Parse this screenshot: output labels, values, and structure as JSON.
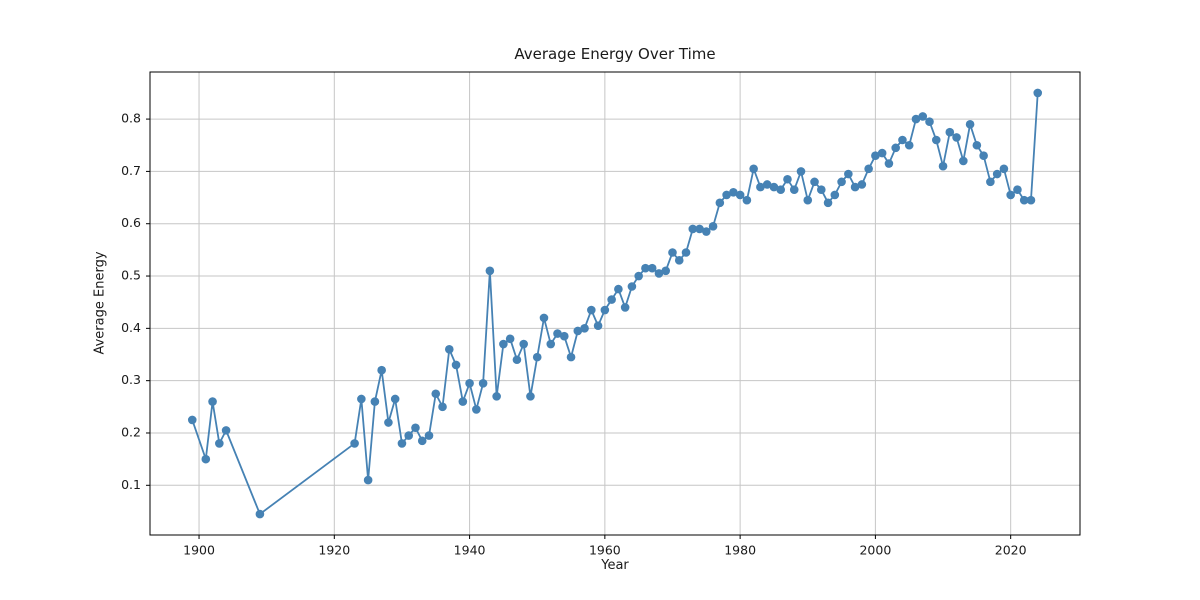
{
  "figure": {
    "title": "Average Energy Over Time",
    "background": "#ffffff"
  },
  "colors": {
    "line": "#4682b4",
    "grid": "#c6c6c6",
    "spine": "#000000",
    "text": "#1a1a1a"
  },
  "chart_data": {
    "type": "line",
    "title": "Average Energy Over Time",
    "xlabel": "Year",
    "ylabel": "Average Energy",
    "marker": "circle",
    "grid": true,
    "legend": "none",
    "xlim": [
      1892.75,
      2030.25
    ],
    "ylim": [
      0.005,
      0.89
    ],
    "x_ticks": [
      1900,
      1920,
      1940,
      1960,
      1980,
      2000,
      2020
    ],
    "y_ticks": [
      0.1,
      0.2,
      0.3,
      0.4,
      0.5,
      0.6,
      0.7,
      0.8
    ],
    "x": [
      1899,
      1901,
      1902,
      1903,
      1904,
      1909,
      1923,
      1924,
      1925,
      1926,
      1927,
      1928,
      1929,
      1930,
      1931,
      1932,
      1933,
      1934,
      1935,
      1936,
      1937,
      1938,
      1939,
      1940,
      1941,
      1942,
      1943,
      1944,
      1945,
      1946,
      1947,
      1948,
      1949,
      1950,
      1951,
      1952,
      1953,
      1954,
      1955,
      1956,
      1957,
      1958,
      1959,
      1960,
      1961,
      1962,
      1963,
      1964,
      1965,
      1966,
      1967,
      1968,
      1969,
      1970,
      1971,
      1972,
      1973,
      1974,
      1975,
      1976,
      1977,
      1978,
      1979,
      1980,
      1981,
      1982,
      1983,
      1984,
      1985,
      1986,
      1987,
      1988,
      1989,
      1990,
      1991,
      1992,
      1993,
      1994,
      1995,
      1996,
      1997,
      1998,
      1999,
      2000,
      2001,
      2002,
      2003,
      2004,
      2005,
      2006,
      2007,
      2008,
      2009,
      2010,
      2011,
      2012,
      2013,
      2014,
      2015,
      2016,
      2017,
      2018,
      2019,
      2020,
      2021,
      2022,
      2023,
      2024
    ],
    "y": [
      0.225,
      0.15,
      0.26,
      0.18,
      0.205,
      0.045,
      0.18,
      0.265,
      0.11,
      0.26,
      0.32,
      0.22,
      0.265,
      0.18,
      0.195,
      0.21,
      0.185,
      0.195,
      0.275,
      0.25,
      0.36,
      0.33,
      0.26,
      0.295,
      0.245,
      0.295,
      0.51,
      0.27,
      0.37,
      0.38,
      0.34,
      0.37,
      0.27,
      0.345,
      0.42,
      0.37,
      0.39,
      0.385,
      0.345,
      0.395,
      0.4,
      0.435,
      0.405,
      0.435,
      0.455,
      0.475,
      0.44,
      0.48,
      0.5,
      0.515,
      0.515,
      0.505,
      0.51,
      0.545,
      0.53,
      0.545,
      0.59,
      0.59,
      0.585,
      0.595,
      0.64,
      0.655,
      0.66,
      0.655,
      0.645,
      0.705,
      0.67,
      0.675,
      0.67,
      0.665,
      0.685,
      0.665,
      0.7,
      0.645,
      0.68,
      0.665,
      0.64,
      0.655,
      0.68,
      0.695,
      0.67,
      0.675,
      0.705,
      0.73,
      0.735,
      0.715,
      0.745,
      0.76,
      0.75,
      0.8,
      0.805,
      0.795,
      0.76,
      0.71,
      0.775,
      0.765,
      0.72,
      0.79,
      0.75,
      0.73,
      0.68,
      0.695,
      0.705,
      0.655,
      0.665,
      0.645,
      0.645,
      0.85
    ]
  }
}
